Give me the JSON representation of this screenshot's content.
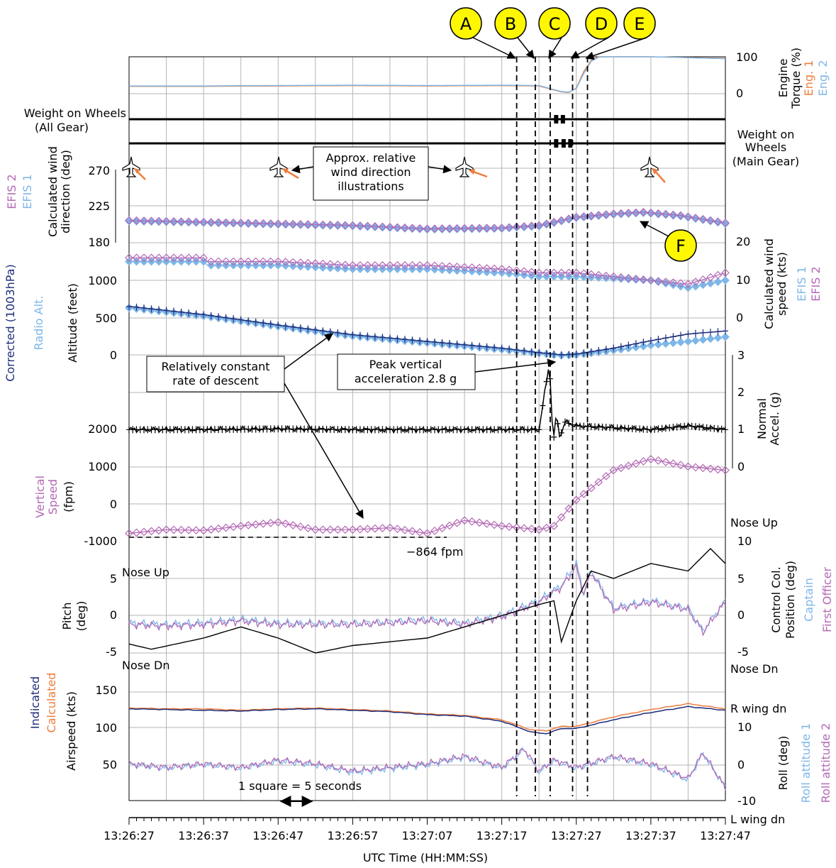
{
  "chart_data": {
    "type": "line",
    "xlabel": "UTC Time (HH:MM:SS)",
    "x_ticks": [
      "13:26:27",
      "13:26:37",
      "13:26:47",
      "13:26:57",
      "13:27:07",
      "13:27:17",
      "13:27:27",
      "13:27:37",
      "13:27:47"
    ],
    "x_seconds_range": [
      0,
      80
    ],
    "grid": true,
    "scale_note": "1 square = 5 seconds",
    "event_markers": [
      {
        "label": "A",
        "t": 52.0
      },
      {
        "label": "B",
        "t": 54.5
      },
      {
        "label": "C",
        "t": 56.5
      },
      {
        "label": "D",
        "t": 59.5
      },
      {
        "label": "E",
        "t": 61.5
      }
    ],
    "marker_F_label": "F",
    "panels": {
      "engine_torque": {
        "ylabel_lines": [
          "Engine",
          "Torque (%)"
        ],
        "yticks": [
          "100",
          "0"
        ],
        "series": [
          {
            "name": "Eng. 1",
            "color": "#f07c3c",
            "t": [
              0,
              10,
              20,
              30,
              40,
              50,
              55,
              57,
              58,
              59,
              60,
              61,
              62,
              63,
              64,
              70,
              80
            ],
            "v": [
              20,
              20,
              21,
              22,
              21,
              22,
              21,
              10,
              5,
              3,
              15,
              60,
              90,
              100,
              100,
              100,
              96
            ]
          },
          {
            "name": "Eng. 2",
            "color": "#7eb6e8",
            "t": [
              0,
              10,
              20,
              30,
              40,
              50,
              55,
              57,
              58,
              59,
              60,
              61,
              62,
              63,
              64,
              70,
              80
            ],
            "v": [
              21,
              21,
              22,
              23,
              22,
              23,
              22,
              11,
              6,
              4,
              14,
              55,
              88,
              99,
              100,
              100,
              95
            ]
          }
        ]
      },
      "wow_all": {
        "label_lines": [
          "Weight on Wheels",
          "(All Gear)"
        ],
        "blips": [
          57.3,
          58.2
        ]
      },
      "wow_main": {
        "label_lines": [
          "Weight on",
          "Wheels",
          "(Main Gear)"
        ],
        "blips": [
          57.3,
          58.3,
          59.2
        ]
      },
      "wind_direction": {
        "ylabel_lines": [
          "Calculated wind",
          "direction (deg)"
        ],
        "yticks": [
          180,
          225,
          270
        ],
        "series": [
          {
            "name": "EFIS 1",
            "color": "#7eb6e8",
            "t": [
              0,
              10,
              20,
              30,
              40,
              50,
              55,
              60,
              65,
              69,
              74,
              80
            ],
            "v": [
              206,
              204,
              202,
              200,
              196,
              197,
              200,
              210,
              214,
              216,
              212,
              203
            ]
          },
          {
            "name": "EFIS 2",
            "color": "#b368b5",
            "t": [
              0,
              10,
              20,
              30,
              40,
              50,
              55,
              60,
              65,
              69,
              74,
              80
            ],
            "v": [
              207,
              205,
              203,
              201,
              197,
              198,
              201,
              211,
              215,
              217,
              213,
              204
            ]
          }
        ]
      },
      "wind_speed": {
        "ylabel_lines": [
          "Calculated wind",
          "speed (kts)"
        ],
        "yticks": [
          0,
          10,
          20
        ],
        "series": [
          {
            "name": "EFIS 1",
            "color": "#7eb6e8",
            "t": [
              0,
              10,
              10.5,
              20,
              30,
              40,
              50,
              55,
              60,
              70,
              75,
              80
            ],
            "v": [
              15,
              15,
              14,
              14,
              13,
              13,
              12,
              11,
              11,
              10,
              8,
              10
            ]
          },
          {
            "name": "EFIS 2",
            "color": "#b368b5",
            "t": [
              0,
              10,
              10.5,
              20,
              30,
              40,
              50,
              55,
              60,
              70,
              75,
              80
            ],
            "v": [
              16,
              16,
              15,
              15,
              14,
              14,
              13,
              12,
              12,
              10,
              9,
              12
            ]
          }
        ]
      },
      "altitude": {
        "ylabel_lines": [
          "Altitude (feet)"
        ],
        "yticks": [
          0,
          500,
          1000
        ],
        "series": [
          {
            "name": "Corrected (1003hPa)",
            "color": "#1f2d7a",
            "t": [
              0,
              10,
              20,
              30,
              40,
              50,
              55,
              58,
              60,
              65,
              70,
              75,
              80
            ],
            "v": [
              650,
              540,
              400,
              270,
              180,
              90,
              30,
              0,
              10,
              90,
              190,
              280,
              320
            ]
          },
          {
            "name": "Radio Alt.",
            "color": "#7eb6e8",
            "t": [
              0,
              10,
              20,
              30,
              40,
              50,
              55,
              58,
              60,
              65,
              70,
              75,
              80
            ],
            "v": [
              630,
              520,
              380,
              250,
              160,
              70,
              20,
              -10,
              0,
              60,
              130,
              180,
              240
            ]
          }
        ]
      },
      "normal_accel": {
        "ylabel_lines": [
          "Normal",
          "Accel. (g)"
        ],
        "yticks": [
          0,
          1,
          2,
          3
        ],
        "series": [
          {
            "name": "Normal Accel.",
            "color": "#000000",
            "t": [
              0,
              10,
              20,
              30,
              40,
              50,
              55,
              56.4,
              56.9,
              57.3,
              57.8,
              58.5,
              60,
              65,
              70,
              75,
              80
            ],
            "v": [
              1.0,
              1.0,
              1.02,
              1.0,
              1.0,
              1.0,
              1.0,
              2.8,
              0.6,
              1.4,
              0.8,
              1.2,
              1.1,
              1.05,
              1.0,
              1.1,
              1.0
            ]
          }
        ]
      },
      "vertical_speed": {
        "ylabel_lines": [
          "Vertical",
          "Speed",
          "(fpm)"
        ],
        "yticks": [
          -1000,
          0,
          1000,
          2000
        ],
        "reference_value": -864,
        "series": [
          {
            "name": "Vertical Speed",
            "color": "#b368b5",
            "t": [
              0,
              5,
              10,
              15,
              20,
              25,
              30,
              35,
              40,
              45,
              50,
              55,
              57,
              60,
              65,
              70,
              75,
              80
            ],
            "v": [
              -800,
              -700,
              -720,
              -600,
              -500,
              -700,
              -700,
              -650,
              -800,
              -450,
              -600,
              -700,
              -600,
              100,
              900,
              1200,
              1000,
              900
            ]
          }
        ]
      },
      "pitch": {
        "ylabel_lines": [
          "Pitch",
          "(deg)"
        ],
        "yticks": [
          -5,
          0,
          5
        ],
        "series": [
          {
            "name": "Pitch",
            "color": "#000000",
            "t": [
              0,
              3,
              10,
              15,
              20,
              25,
              30,
              35,
              40,
              45,
              50,
              55,
              57,
              58,
              60,
              62,
              65,
              70,
              75,
              78,
              80
            ],
            "v": [
              -3.8,
              -4.5,
              -3,
              -1.5,
              -3,
              -5,
              -4,
              -3.5,
              -3,
              -1.5,
              0,
              1.5,
              2,
              -3.5,
              2,
              6,
              5,
              7,
              6,
              9,
              7
            ]
          }
        ]
      },
      "control_column": {
        "ylabel_lines": [
          "Control Col.",
          "Position (deg)"
        ],
        "yticks": [
          -5,
          0,
          5,
          10
        ],
        "series": [
          {
            "name": "Captain",
            "color": "#7eb6e8",
            "t": [
              0,
              5,
              10,
              15,
              20,
              25,
              30,
              35,
              40,
              45,
              50,
              55,
              58,
              60,
              61,
              62,
              65,
              70,
              75,
              77,
              80
            ],
            "v": [
              -1,
              -1.2,
              -1,
              -0.5,
              -1,
              -1,
              -1,
              -0.8,
              -0.5,
              -1,
              0,
              2,
              4,
              7,
              3,
              6,
              1,
              2,
              1,
              -2,
              2
            ]
          },
          {
            "name": "First Officer",
            "color": "#b368b5",
            "t": [
              0,
              5,
              10,
              15,
              20,
              25,
              30,
              35,
              40,
              45,
              50,
              55,
              58,
              60,
              61,
              62,
              65,
              70,
              75,
              77,
              80
            ],
            "v": [
              -1.2,
              -1.4,
              -1.2,
              -0.7,
              -1.2,
              -1.2,
              -1.2,
              -1,
              -0.7,
              -1.2,
              -0.2,
              1.8,
              3.8,
              6.5,
              2.8,
              5.8,
              0.8,
              1.8,
              0.8,
              -2.2,
              1.8
            ]
          }
        ]
      },
      "airspeed": {
        "ylabel_lines": [
          "Airspeed (kts)"
        ],
        "yticks": [
          50,
          100,
          150
        ],
        "series": [
          {
            "name": "Indicated",
            "color": "#1f2d7a",
            "t": [
              0,
              5,
              10,
              15,
              20,
              25,
              30,
              35,
              40,
              45,
              50,
              54,
              56,
              58,
              60,
              65,
              70,
              75,
              80
            ],
            "v": [
              127,
              126,
              125,
              124,
              126,
              127,
              125,
              123,
              119,
              117,
              110,
              95,
              93,
              100,
              100,
              112,
              122,
              130,
              125
            ]
          },
          {
            "name": "Calculated",
            "color": "#f07c3c",
            "t": [
              0,
              5,
              10,
              15,
              20,
              25,
              30,
              35,
              40,
              45,
              50,
              54,
              56,
              58,
              60,
              65,
              70,
              75,
              80
            ],
            "v": [
              128,
              127,
              127,
              125,
              127,
              128,
              126,
              124,
              120,
              118,
              112,
              98,
              97,
              103,
              103,
              116,
              126,
              134,
              127
            ]
          }
        ]
      },
      "roll": {
        "ylabel_lines": [
          "Roll (deg)"
        ],
        "yticks": [
          -10,
          0,
          10
        ],
        "series": [
          {
            "name": "Roll attitude 1",
            "color": "#7eb6e8",
            "t": [
              0,
              5,
              10,
              15,
              20,
              25,
              30,
              35,
              40,
              45,
              50,
              53,
              55,
              57,
              60,
              65,
              70,
              75,
              77,
              80
            ],
            "v": [
              0,
              -1,
              0,
              -1,
              1,
              0,
              -2,
              -1,
              0,
              2,
              -1,
              4,
              -2,
              1,
              -1,
              2,
              0,
              -4,
              3,
              -6
            ]
          },
          {
            "name": "Roll attitude 2",
            "color": "#b368b5",
            "t": [
              0,
              5,
              10,
              15,
              20,
              25,
              30,
              35,
              40,
              45,
              50,
              53,
              55,
              57,
              60,
              65,
              70,
              75,
              77,
              80
            ],
            "v": [
              0.3,
              -0.7,
              0.3,
              -0.7,
              1.3,
              0.3,
              -1.7,
              -0.7,
              0.3,
              2.3,
              -0.7,
              4.3,
              -1.7,
              1.3,
              -0.7,
              2.3,
              0.3,
              -3.7,
              3.3,
              -6.3
            ]
          }
        ]
      }
    },
    "annotations": {
      "wind_illustrations": [
        "Approx. relative",
        "wind direction",
        "illustrations"
      ],
      "descent_lines": [
        "Relatively constant",
        "rate of descent"
      ],
      "peak_lines": [
        "Peak vertical",
        "acceleration 2.8 g"
      ],
      "vs_value": "−864 fpm",
      "nose_up": "Nose Up",
      "nose_dn": "Nose Dn",
      "r_wing_dn": "R wing dn",
      "l_wing_dn": "L wing dn"
    }
  }
}
